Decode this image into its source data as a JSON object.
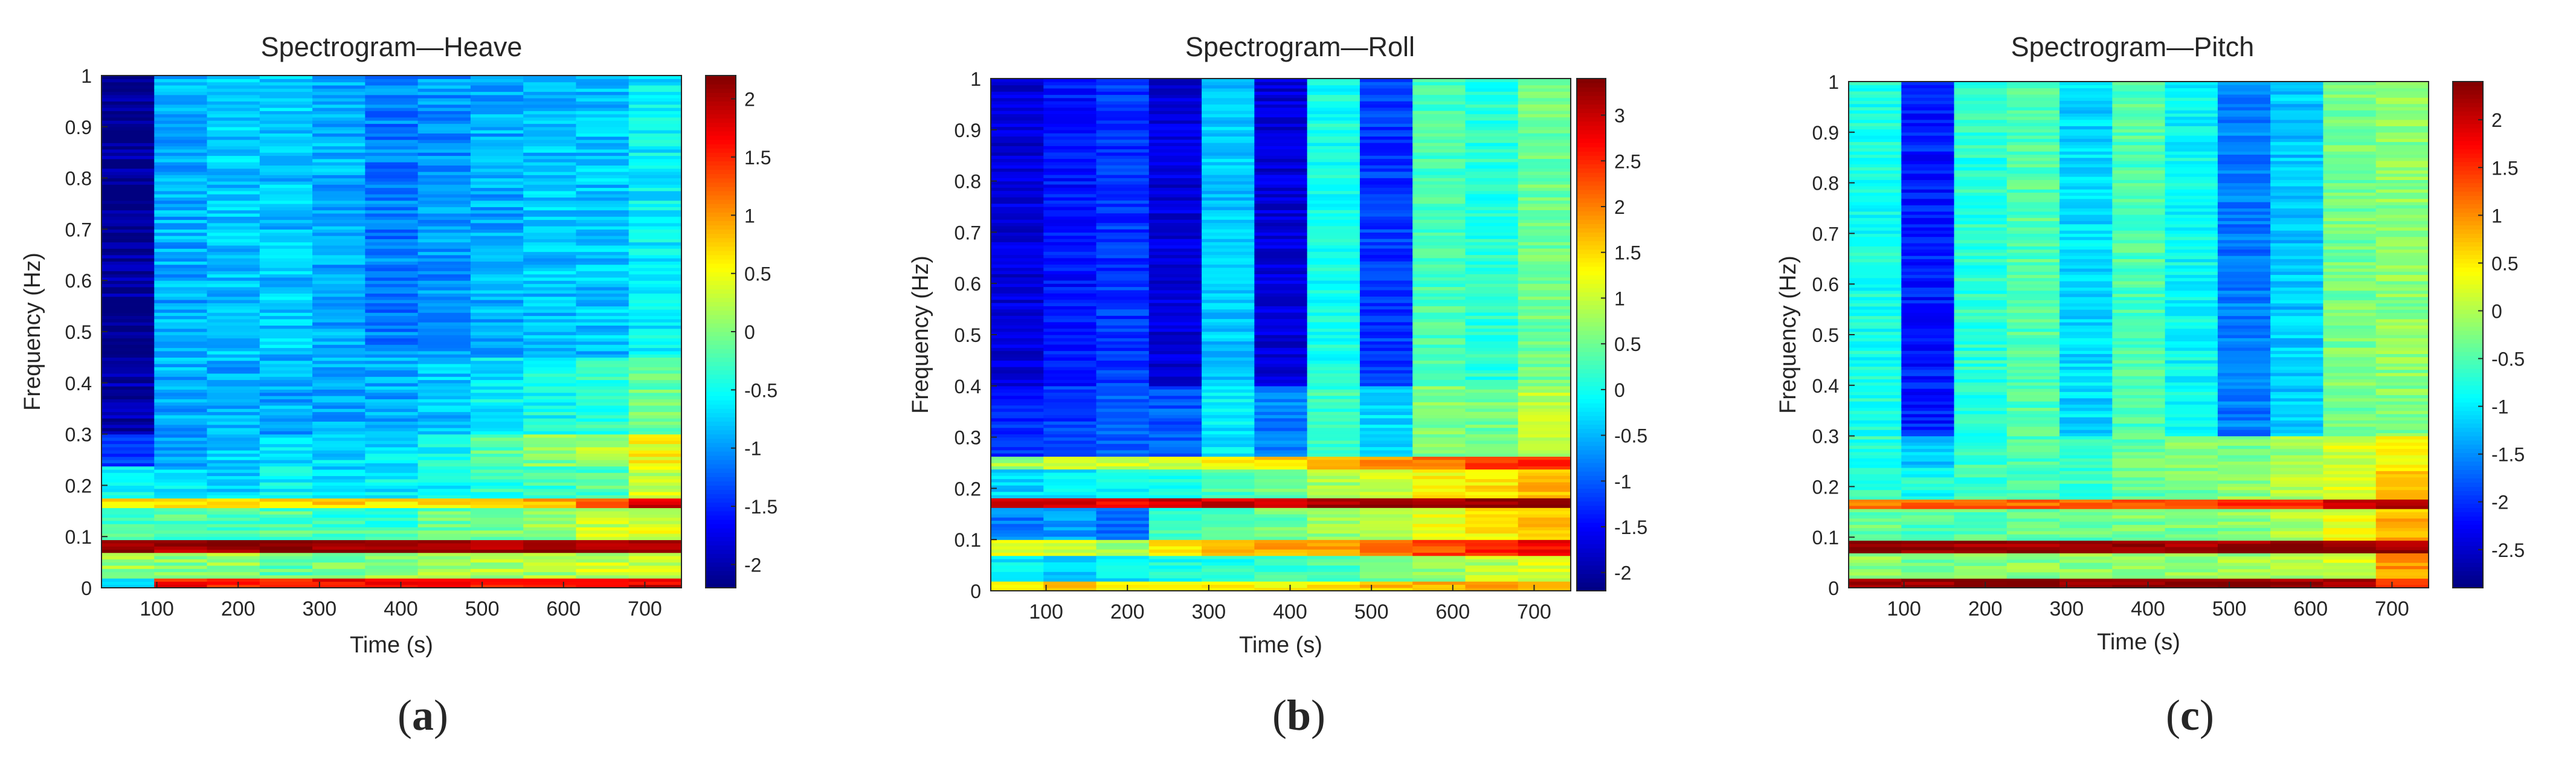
{
  "figure": {
    "panel_captions": [
      "(a)",
      "(b)",
      "(c)"
    ],
    "panel_letters": [
      "a",
      "b",
      "c"
    ]
  },
  "chart_data": [
    {
      "type": "heatmap",
      "panel": "a",
      "title": "Spectrogram—Heave",
      "xlabel": "Time (s)",
      "ylabel": "Frequency (Hz)",
      "xlim": [
        32,
        745
      ],
      "ylim": [
        0,
        1
      ],
      "xticks": [
        "100",
        "200",
        "300",
        "400",
        "500",
        "600",
        "700"
      ],
      "yticks": [
        "0",
        "0.1",
        "0.2",
        "0.3",
        "0.4",
        "0.5",
        "0.6",
        "0.7",
        "0.8",
        "0.9",
        "1"
      ],
      "colorbar": {
        "min": -2.2,
        "max": 2.2,
        "ticks": [
          "2",
          "1.5",
          "1",
          "0.5",
          "0",
          "-0.5",
          "-1",
          "-1.5",
          "-2"
        ]
      },
      "time_columns": [
        64,
        129,
        192,
        256,
        320,
        384,
        448,
        512,
        576,
        640,
        704
      ],
      "column_base": [
        -2.1,
        -0.9,
        -0.8,
        -0.8,
        -0.9,
        -1.1,
        -1.0,
        -0.9,
        -0.8,
        -0.8,
        -0.6
      ],
      "bands": [
        {
          "freq": [
            0.0,
            0.02
          ],
          "levels": [
            -0.5,
            1.6,
            1.6,
            1.5,
            1.6,
            1.6,
            1.6,
            1.6,
            1.6,
            1.6,
            1.8
          ]
        },
        {
          "freq": [
            0.02,
            0.07
          ],
          "levels": [
            0.1,
            0.0,
            0.1,
            -0.1,
            0.0,
            0.1,
            0.1,
            0.2,
            0.2,
            0.3,
            0.3
          ]
        },
        {
          "freq": [
            0.07,
            0.095
          ],
          "levels": [
            2.1,
            2.1,
            2.1,
            2.1,
            2.1,
            2.1,
            2.1,
            2.1,
            2.1,
            2.1,
            2.1
          ]
        },
        {
          "freq": [
            0.095,
            0.155
          ],
          "levels": [
            -0.3,
            -0.2,
            -0.3,
            -0.2,
            -0.3,
            -0.3,
            -0.1,
            0.0,
            0.1,
            0.3,
            0.4
          ]
        },
        {
          "freq": [
            0.155,
            0.175
          ],
          "levels": [
            0.6,
            0.7,
            0.7,
            0.7,
            0.7,
            0.7,
            0.7,
            0.8,
            0.9,
            1.2,
            1.9
          ]
        },
        {
          "freq": [
            0.175,
            0.24
          ],
          "levels": [
            -0.6,
            -0.7,
            -0.7,
            -0.6,
            -0.7,
            -0.6,
            -0.5,
            -0.4,
            -0.3,
            -0.2,
            0.3
          ]
        },
        {
          "freq": [
            0.24,
            0.3
          ],
          "levels": [
            -1.4,
            -0.9,
            -0.8,
            -0.7,
            -0.7,
            -0.7,
            -0.5,
            -0.2,
            0.0,
            0.2,
            0.5
          ]
        },
        {
          "freq": [
            0.3,
            0.45
          ],
          "levels": [
            -2.0,
            -0.9,
            -0.9,
            -0.9,
            -0.9,
            -0.9,
            -0.8,
            -0.6,
            -0.5,
            -0.4,
            -0.1
          ]
        }
      ]
    },
    {
      "type": "heatmap",
      "panel": "b",
      "title": "Spectrogram—Roll",
      "xlabel": "Time (s)",
      "ylabel": "Frequency (Hz)",
      "xlim": [
        32,
        745
      ],
      "ylim": [
        0,
        1
      ],
      "xticks": [
        "100",
        "200",
        "300",
        "400",
        "500",
        "600",
        "700"
      ],
      "yticks": [
        "0",
        "0.1",
        "0.2",
        "0.3",
        "0.4",
        "0.5",
        "0.6",
        "0.7",
        "0.8",
        "0.9",
        "1"
      ],
      "colorbar": {
        "min": -2.2,
        "max": 3.4,
        "ticks": [
          "3",
          "2.5",
          "2",
          "1.5",
          "1",
          "0.5",
          "0",
          "-0.5",
          "-1",
          "-1.5",
          "-2"
        ]
      },
      "time_columns": [
        64,
        129,
        192,
        256,
        320,
        384,
        448,
        512,
        576,
        640,
        704
      ],
      "column_base": [
        -1.7,
        -1.4,
        -1.2,
        -1.7,
        -0.4,
        -1.7,
        0.0,
        -1.2,
        0.3,
        0.1,
        0.5
      ],
      "bands": [
        {
          "freq": [
            0.0,
            0.02
          ],
          "levels": [
            1.4,
            1.5,
            1.3,
            1.2,
            1.3,
            1.4,
            1.5,
            1.6,
            1.7,
            1.8,
            1.9
          ]
        },
        {
          "freq": [
            0.02,
            0.07
          ],
          "levels": [
            -0.2,
            -0.3,
            -0.2,
            0.0,
            0.1,
            0.2,
            0.3,
            0.5,
            0.7,
            0.9,
            1.1
          ]
        },
        {
          "freq": [
            0.07,
            0.1
          ],
          "levels": [
            1.2,
            1.0,
            0.8,
            1.5,
            1.6,
            1.8,
            1.9,
            2.1,
            2.3,
            2.5,
            2.7
          ]
        },
        {
          "freq": [
            0.1,
            0.16
          ],
          "levels": [
            -0.8,
            -0.6,
            -0.9,
            0.2,
            0.3,
            0.5,
            0.7,
            0.9,
            1.2,
            1.4,
            1.6
          ]
        },
        {
          "freq": [
            0.16,
            0.18
          ],
          "levels": [
            2.8,
            2.8,
            2.8,
            2.9,
            3.0,
            3.0,
            3.1,
            3.2,
            3.2,
            3.3,
            3.3
          ]
        },
        {
          "freq": [
            0.18,
            0.235
          ],
          "levels": [
            -0.3,
            -0.2,
            -0.1,
            0.0,
            0.3,
            0.5,
            0.8,
            1.0,
            1.3,
            1.4,
            1.7
          ]
        },
        {
          "freq": [
            0.235,
            0.26
          ],
          "levels": [
            0.8,
            0.9,
            1.0,
            1.1,
            1.3,
            1.5,
            1.7,
            1.9,
            2.1,
            2.3,
            2.5
          ]
        },
        {
          "freq": [
            0.26,
            0.4
          ],
          "levels": [
            -1.3,
            -1.2,
            -1.0,
            -1.0,
            -0.2,
            -0.8,
            0.2,
            -0.3,
            0.6,
            0.5,
            0.9
          ]
        }
      ]
    },
    {
      "type": "heatmap",
      "panel": "c",
      "title": "Spectrogram—Pitch",
      "xlabel": "Time (s)",
      "ylabel": "Frequency (Hz)",
      "xlim": [
        32,
        745
      ],
      "ylim": [
        0,
        1
      ],
      "xticks": [
        "100",
        "200",
        "300",
        "400",
        "500",
        "600",
        "700"
      ],
      "yticks": [
        "0",
        "0.1",
        "0.2",
        "0.3",
        "0.4",
        "0.5",
        "0.6",
        "0.7",
        "0.8",
        "0.9",
        "1"
      ],
      "colorbar": {
        "min": -2.9,
        "max": 2.4,
        "ticks": [
          "2",
          "1.5",
          "1",
          "0.5",
          "0",
          "-0.5",
          "-1",
          "-1.5",
          "-2",
          "-2.5"
        ]
      },
      "time_columns": [
        64,
        129,
        192,
        256,
        320,
        384,
        448,
        512,
        576,
        640,
        704
      ],
      "column_base": [
        -0.8,
        -2.1,
        -0.7,
        -0.5,
        -1.1,
        -0.5,
        -0.9,
        -1.6,
        -1.2,
        -0.3,
        -0.2
      ],
      "bands": [
        {
          "freq": [
            0.0,
            0.02
          ],
          "levels": [
            2.3,
            2.3,
            2.3,
            2.3,
            2.3,
            2.3,
            2.3,
            2.3,
            2.3,
            2.3,
            1.4
          ]
        },
        {
          "freq": [
            0.02,
            0.07
          ],
          "levels": [
            -0.2,
            -0.3,
            -0.3,
            -0.2,
            -0.2,
            -0.2,
            -0.1,
            -0.1,
            0.0,
            0.2,
            0.9
          ]
        },
        {
          "freq": [
            0.07,
            0.095
          ],
          "levels": [
            2.3,
            2.3,
            2.3,
            2.3,
            2.3,
            2.3,
            2.3,
            2.3,
            2.3,
            2.3,
            2.3
          ]
        },
        {
          "freq": [
            0.095,
            0.155
          ],
          "levels": [
            -0.4,
            -0.5,
            -0.4,
            -0.4,
            -0.4,
            -0.3,
            -0.3,
            -0.2,
            0.0,
            0.3,
            0.8
          ]
        },
        {
          "freq": [
            0.155,
            0.175
          ],
          "levels": [
            1.2,
            1.2,
            1.2,
            1.2,
            1.2,
            1.2,
            1.3,
            1.4,
            1.6,
            1.9,
            2.2
          ]
        },
        {
          "freq": [
            0.175,
            0.24
          ],
          "levels": [
            -0.6,
            -0.8,
            -0.6,
            -0.5,
            -0.6,
            -0.4,
            -0.3,
            -0.2,
            0.0,
            0.3,
            0.6
          ]
        },
        {
          "freq": [
            0.24,
            0.3
          ],
          "levels": [
            -0.7,
            -1.2,
            -0.6,
            -0.5,
            -0.7,
            -0.4,
            -0.3,
            -0.3,
            -0.1,
            0.2,
            0.5
          ]
        }
      ]
    }
  ]
}
